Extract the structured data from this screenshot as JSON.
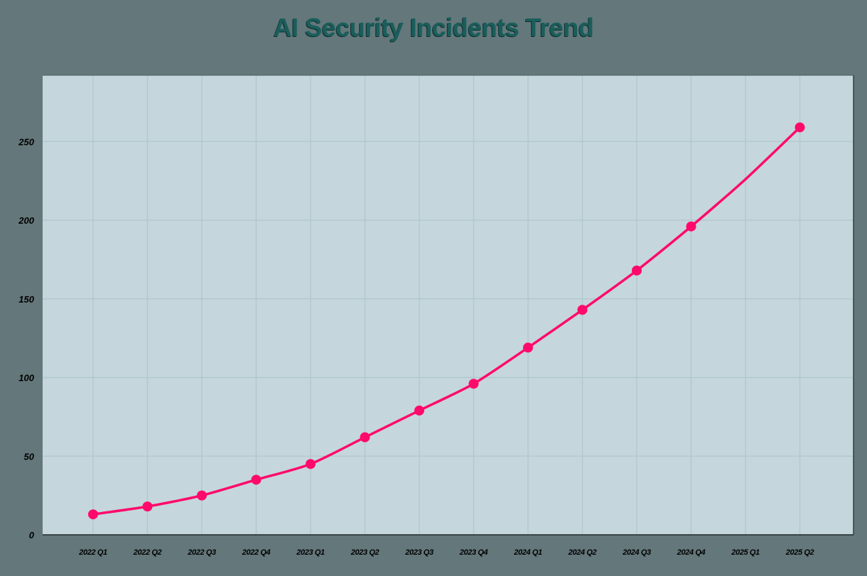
{
  "title": "AI Security Incidents Trend",
  "colors": {
    "page_background": "#64777a",
    "plot_background": "#c5d7dc",
    "gridline": "#b3c8ce",
    "axis_line": "#1e2a2c",
    "series_line": "#ff0a6c",
    "title": "#1a5e5c"
  },
  "chart_data": {
    "type": "line",
    "title": "AI Security Incidents Trend",
    "xlabel": "",
    "ylabel": "",
    "categories": [
      "2022 Q1",
      "2022 Q2",
      "2022 Q3",
      "2022 Q4",
      "2023 Q1",
      "2023 Q2",
      "2023 Q3",
      "2023 Q4",
      "2024 Q1",
      "2024 Q2",
      "2024 Q3",
      "2024 Q4",
      "2025 Q1",
      "2025 Q2"
    ],
    "series": [
      {
        "name": "AI Security Incidents",
        "values": [
          13,
          18,
          25,
          35,
          45,
          62,
          79,
          96,
          119,
          143,
          168,
          196,
          226,
          259
        ],
        "markers_hidden_at": [
          "2025 Q1"
        ]
      }
    ],
    "ylim": [
      0,
      292
    ],
    "yticks": [
      0,
      50,
      100,
      150,
      200,
      250
    ],
    "grid": true,
    "legend": "none"
  }
}
